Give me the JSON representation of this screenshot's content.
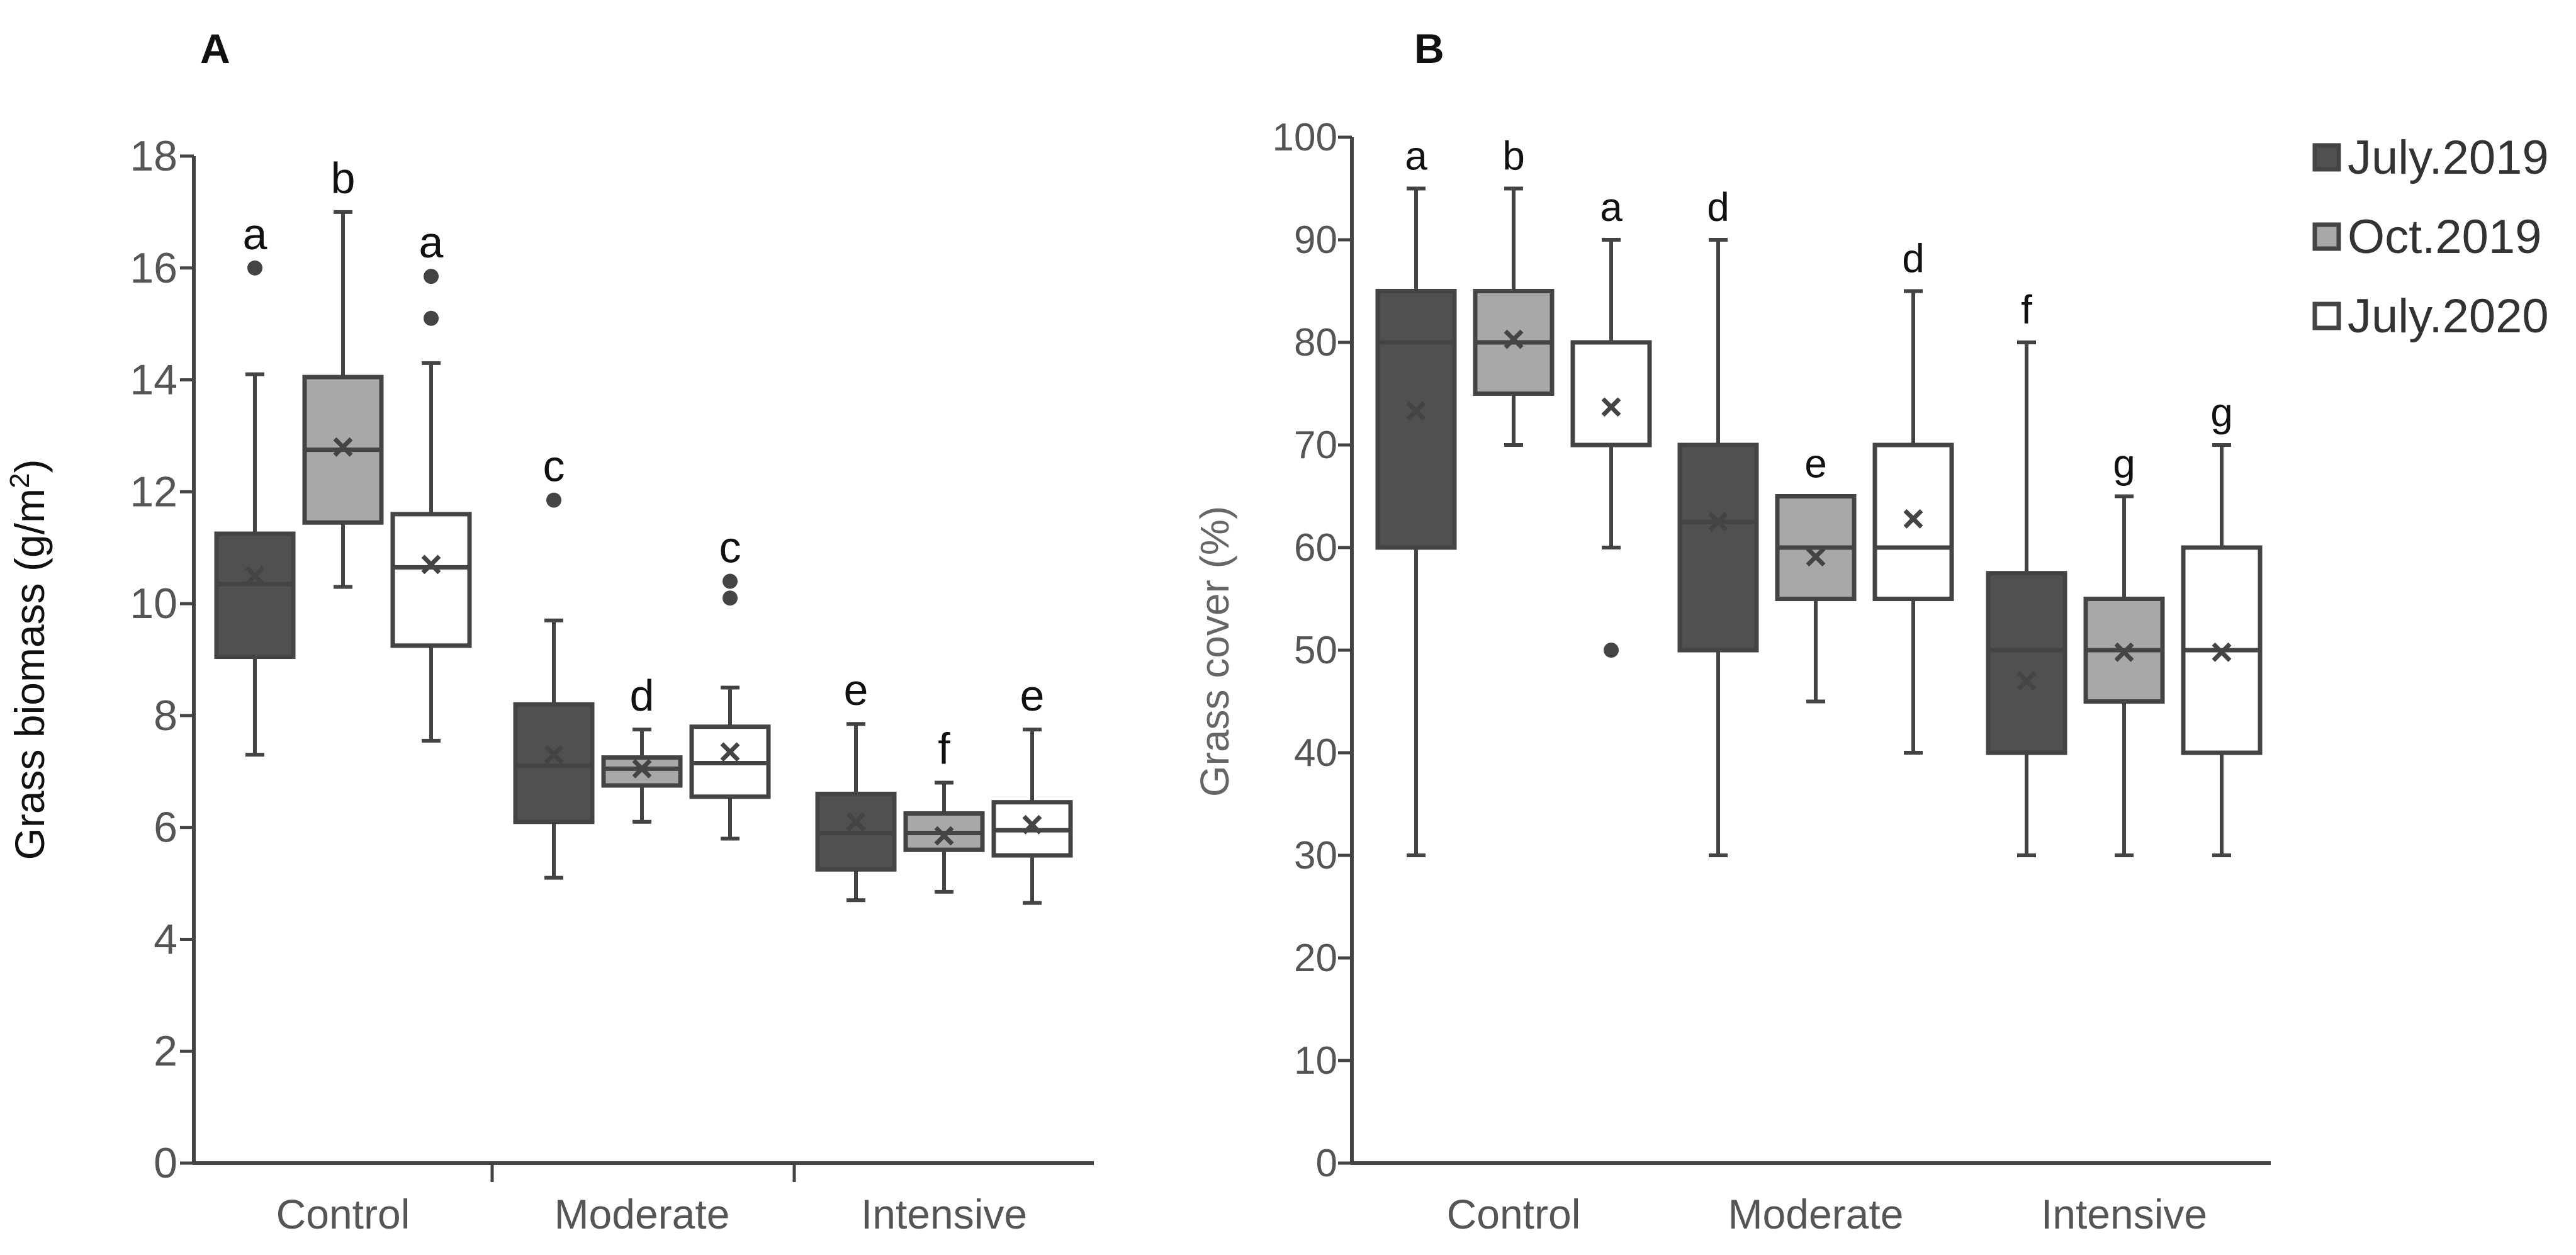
{
  "legend": {
    "entries": [
      {
        "label": "July.2019",
        "color": "#505050"
      },
      {
        "label": "Oct.2019",
        "color": "#a8a8a8"
      },
      {
        "label": "July.2020",
        "color": "#ffffff"
      }
    ]
  },
  "chart_data": [
    {
      "panel": "A",
      "type": "box",
      "ylabel": "Grass biomass (g/m²)",
      "ylim": [
        0,
        18
      ],
      "yticks": [
        0,
        2,
        4,
        6,
        8,
        10,
        12,
        14,
        16,
        18
      ],
      "categories": [
        "Control",
        "Moderate",
        "Intensive"
      ],
      "series_names": [
        "July.2019",
        "Oct.2019",
        "July.2020"
      ],
      "boxes": [
        {
          "category": "Control",
          "series": "July.2019",
          "whisker_low": 7.3,
          "q1": 9.05,
          "median": 10.35,
          "q3": 11.25,
          "whisker_high": 14.1,
          "mean": 10.5,
          "outliers": [
            16.0
          ],
          "letter": "a"
        },
        {
          "category": "Control",
          "series": "Oct.2019",
          "whisker_low": 10.3,
          "q1": 11.45,
          "median": 12.75,
          "q3": 14.05,
          "whisker_high": 17.0,
          "mean": 12.8,
          "outliers": [],
          "letter": "b"
        },
        {
          "category": "Control",
          "series": "July.2020",
          "whisker_low": 7.55,
          "q1": 9.25,
          "median": 10.65,
          "q3": 11.6,
          "whisker_high": 14.3,
          "mean": 10.7,
          "outliers": [
            15.1,
            15.85
          ],
          "letter": "a"
        },
        {
          "category": "Moderate",
          "series": "July.2019",
          "whisker_low": 5.1,
          "q1": 6.1,
          "median": 7.1,
          "q3": 8.2,
          "whisker_high": 9.7,
          "mean": 7.3,
          "outliers": [
            11.85
          ],
          "letter": "c"
        },
        {
          "category": "Moderate",
          "series": "Oct.2019",
          "whisker_low": 6.1,
          "q1": 6.75,
          "median": 7.05,
          "q3": 7.25,
          "whisker_high": 7.75,
          "mean": 7.05,
          "outliers": [],
          "letter": "d"
        },
        {
          "category": "Moderate",
          "series": "July.2020",
          "whisker_low": 5.8,
          "q1": 6.55,
          "median": 7.15,
          "q3": 7.8,
          "whisker_high": 8.5,
          "mean": 7.35,
          "outliers": [
            10.1,
            10.4
          ],
          "letter": "c"
        },
        {
          "category": "Intensive",
          "series": "July.2019",
          "whisker_low": 4.7,
          "q1": 5.25,
          "median": 5.9,
          "q3": 6.6,
          "whisker_high": 7.85,
          "mean": 6.1,
          "outliers": [],
          "letter": "e"
        },
        {
          "category": "Intensive",
          "series": "Oct.2019",
          "whisker_low": 4.85,
          "q1": 5.6,
          "median": 5.9,
          "q3": 6.25,
          "whisker_high": 6.8,
          "mean": 5.85,
          "outliers": [],
          "letter": "f"
        },
        {
          "category": "Intensive",
          "series": "July.2020",
          "whisker_low": 4.65,
          "q1": 5.5,
          "median": 5.95,
          "q3": 6.45,
          "whisker_high": 7.75,
          "mean": 6.05,
          "outliers": [],
          "letter": "e"
        }
      ]
    },
    {
      "panel": "B",
      "type": "box",
      "ylabel": "Grass cover (%)",
      "ylim": [
        0,
        100
      ],
      "yticks": [
        0,
        10,
        20,
        30,
        40,
        50,
        60,
        70,
        80,
        90,
        100
      ],
      "categories": [
        "Control",
        "Moderate",
        "Intensive"
      ],
      "series_names": [
        "July.2019",
        "Oct.2019",
        "July.2020"
      ],
      "boxes": [
        {
          "category": "Control",
          "series": "July.2019",
          "whisker_low": 30,
          "q1": 60,
          "median": 80,
          "q3": 85,
          "whisker_high": 95,
          "mean": 73.3,
          "outliers": [],
          "letter": "a"
        },
        {
          "category": "Control",
          "series": "Oct.2019",
          "whisker_low": 70,
          "q1": 75,
          "median": 80,
          "q3": 85,
          "whisker_high": 95,
          "mean": 80.3,
          "outliers": [],
          "letter": "b"
        },
        {
          "category": "Control",
          "series": "July.2020",
          "whisker_low": 60,
          "q1": 70,
          "median": 70,
          "q3": 80,
          "whisker_high": 90,
          "mean": 73.7,
          "outliers": [
            50
          ],
          "letter": "a"
        },
        {
          "category": "Moderate",
          "series": "July.2019",
          "whisker_low": 30,
          "q1": 50,
          "median": 62.5,
          "q3": 70,
          "whisker_high": 90,
          "mean": 62.5,
          "outliers": [],
          "letter": "d"
        },
        {
          "category": "Moderate",
          "series": "Oct.2019",
          "whisker_low": 45,
          "q1": 55,
          "median": 60,
          "q3": 65,
          "whisker_high": 65,
          "mean": 59.1,
          "outliers": [],
          "letter": "e"
        },
        {
          "category": "Moderate",
          "series": "July.2020",
          "whisker_low": 40,
          "q1": 55,
          "median": 60,
          "q3": 70,
          "whisker_high": 85,
          "mean": 62.8,
          "outliers": [],
          "letter": "d"
        },
        {
          "category": "Intensive",
          "series": "July.2019",
          "whisker_low": 30,
          "q1": 40,
          "median": 50,
          "q3": 57.5,
          "whisker_high": 80,
          "mean": 47.0,
          "outliers": [],
          "letter": "f"
        },
        {
          "category": "Intensive",
          "series": "Oct.2019",
          "whisker_low": 30,
          "q1": 45,
          "median": 50,
          "q3": 55,
          "whisker_high": 65,
          "mean": 49.8,
          "outliers": [],
          "letter": "g"
        },
        {
          "category": "Intensive",
          "series": "July.2020",
          "whisker_low": 30,
          "q1": 40,
          "median": 50,
          "q3": 60,
          "whisker_high": 70,
          "mean": 49.8,
          "outliers": [],
          "letter": "g"
        }
      ]
    }
  ]
}
